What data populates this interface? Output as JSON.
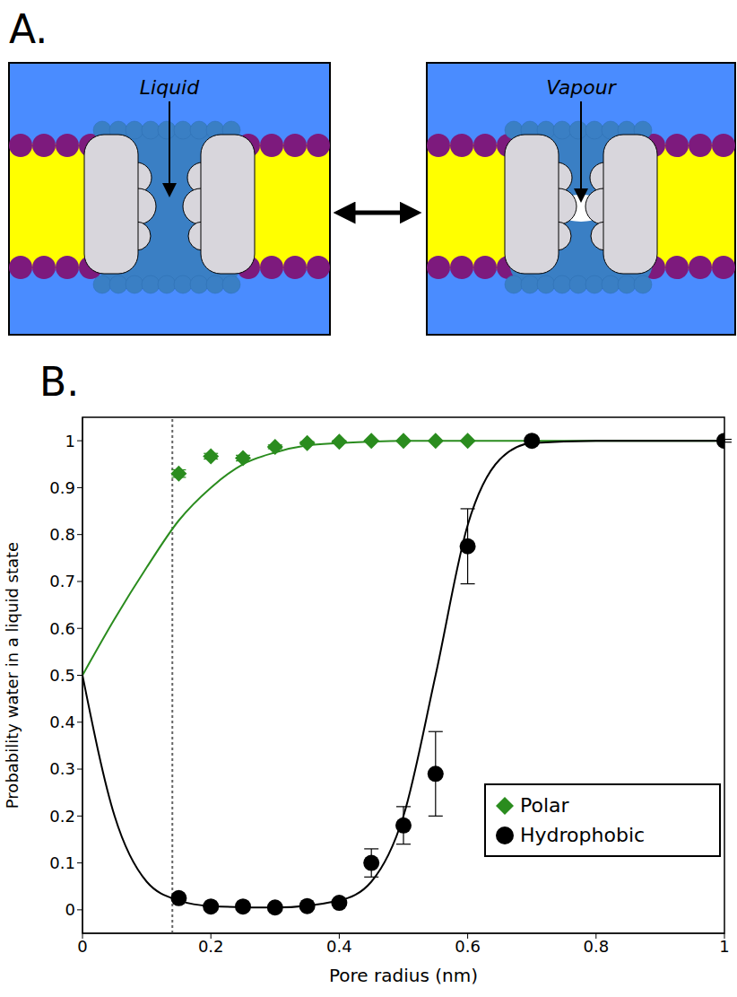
{
  "diagram": {
    "label": "A.",
    "states": [
      {
        "label": "Liquid"
      },
      {
        "label": "Vapour"
      }
    ]
  },
  "chart_data": {
    "type": "scatter",
    "panel": "B.",
    "x_label": "Pore radius (nm)",
    "y_label": "Probability water in a liquid state",
    "xlim": [
      0,
      1
    ],
    "xticks": [
      0,
      0.2,
      0.4,
      0.6,
      0.8,
      1
    ],
    "ylim": [
      -0.05,
      1.05
    ],
    "yticks": [
      0,
      0.1,
      0.2,
      0.3,
      0.4,
      0.5,
      0.6,
      0.7,
      0.8,
      0.9,
      1
    ],
    "grid": false,
    "legend": "lower right",
    "vline_x": 0.14,
    "series": [
      {
        "name": "Polar",
        "color": "#2a8c1e",
        "marker": "diamond",
        "x": [
          0.15,
          0.2,
          0.25,
          0.3,
          0.35,
          0.4,
          0.45,
          0.5,
          0.55,
          0.6
        ],
        "values": [
          0.93,
          0.967,
          0.963,
          0.987,
          0.995,
          0.998,
          1,
          1,
          1,
          1
        ],
        "errors": [
          0.008,
          0.006,
          0.006,
          0.004,
          0.003,
          0.002,
          0.001,
          0.001,
          0.001,
          0.001
        ],
        "fit": {
          "x": [
            0,
            0.05,
            0.1,
            0.15,
            0.2,
            0.25,
            0.3,
            0.35,
            0.4,
            0.5,
            0.6,
            0.7,
            1
          ],
          "values": [
            0.5,
            0.62,
            0.73,
            0.83,
            0.9,
            0.95,
            0.975,
            0.99,
            0.995,
            1,
            1,
            1,
            1
          ]
        }
      },
      {
        "name": "Hydrophobic",
        "color": "#000000",
        "marker": "circle",
        "x": [
          0.15,
          0.2,
          0.25,
          0.3,
          0.35,
          0.4,
          0.45,
          0.5,
          0.55,
          0.6,
          0.7,
          1
        ],
        "values": [
          0.025,
          0.007,
          0.007,
          0.005,
          0.008,
          0.015,
          0.1,
          0.18,
          0.29,
          0.775,
          1,
          1
        ],
        "errors": [
          0.005,
          0.003,
          0.003,
          0.003,
          0.003,
          0.005,
          0.03,
          0.04,
          0.09,
          0.08,
          0.003,
          0.003
        ],
        "fit": {
          "x": [
            0,
            0.05,
            0.1,
            0.15,
            0.2,
            0.3,
            0.4,
            0.45,
            0.5,
            0.55,
            0.6,
            0.65,
            0.7,
            0.8,
            1
          ],
          "values": [
            0.5,
            0.2,
            0.06,
            0.02,
            0.008,
            0.005,
            0.02,
            0.06,
            0.2,
            0.5,
            0.82,
            0.96,
            0.995,
            1,
            1
          ]
        }
      }
    ]
  }
}
